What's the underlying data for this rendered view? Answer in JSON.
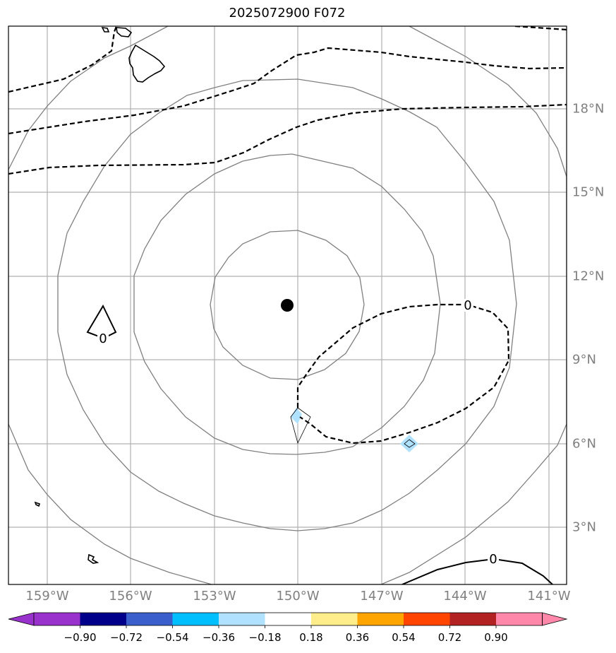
{
  "title": "2025072900 F072",
  "map": {
    "lon_labels": [
      "159°W",
      "156°W",
      "153°W",
      "150°W",
      "147°W",
      "144°W",
      "141°W"
    ],
    "lat_labels": [
      "3°N",
      "6°N",
      "9°N",
      "12°N",
      "15°N",
      "18°N"
    ],
    "center_marker": {
      "lon": "150.4°W",
      "lat": "11.0°N"
    },
    "contour_labels": [
      "0",
      "0",
      "0"
    ],
    "colors": {
      "coastline": "#000000",
      "gridline": "#b0b0b0",
      "range_ring": "#808080",
      "contour": "#000000",
      "frame": "#000000"
    }
  },
  "colorbar": {
    "tick_labels": [
      "−0.90",
      "−0.72",
      "−0.54",
      "−0.36",
      "−0.18",
      "0.18",
      "0.36",
      "0.54",
      "0.72",
      "0.90"
    ],
    "colors": [
      "#9932cc",
      "#00008b",
      "#3a5fcd",
      "#00bfff",
      "#b0e2ff",
      "#ffffff",
      "#ffec8b",
      "#ffa500",
      "#ff4500",
      "#b22222",
      "#ff88aa"
    ]
  }
}
